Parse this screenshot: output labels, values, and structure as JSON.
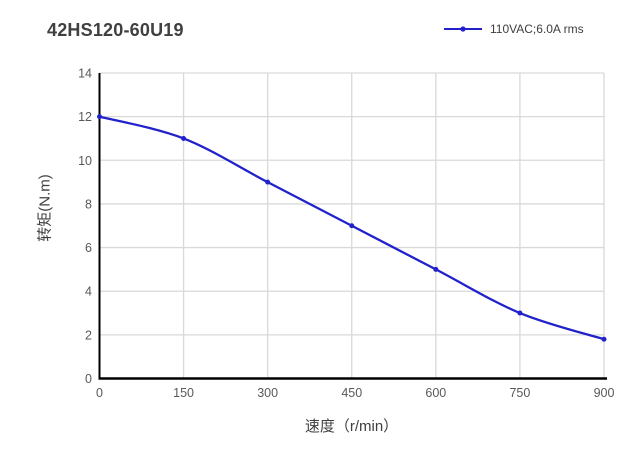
{
  "title": "42HS120-60U19",
  "legend": {
    "label": "110VAC;6.0A rms"
  },
  "colors": {
    "series": "#2222cc",
    "title_text": "#404040",
    "tick_text": "#595959",
    "axis_title_text": "#404040",
    "gridline": "#d9d9d9",
    "axis_line": "#000000",
    "background": "#ffffff"
  },
  "chart_data": {
    "type": "line",
    "title": "42HS120-60U19",
    "xlabel": "速度（r/min）",
    "ylabel": "转矩(N.m)",
    "x": [
      0,
      150,
      300,
      450,
      600,
      750,
      900
    ],
    "series": [
      {
        "name": "110VAC;6.0A rms",
        "values": [
          12,
          11,
          9,
          7,
          5,
          3,
          1.8
        ]
      }
    ],
    "xlim": [
      0,
      900
    ],
    "ylim": [
      0,
      14
    ],
    "x_ticks": [
      0,
      150,
      300,
      450,
      600,
      750,
      900
    ],
    "y_ticks": [
      0,
      2,
      4,
      6,
      8,
      10,
      12,
      14
    ],
    "grid": true,
    "legend_position": "top-right",
    "marker": "circle",
    "line_smooth": true
  }
}
